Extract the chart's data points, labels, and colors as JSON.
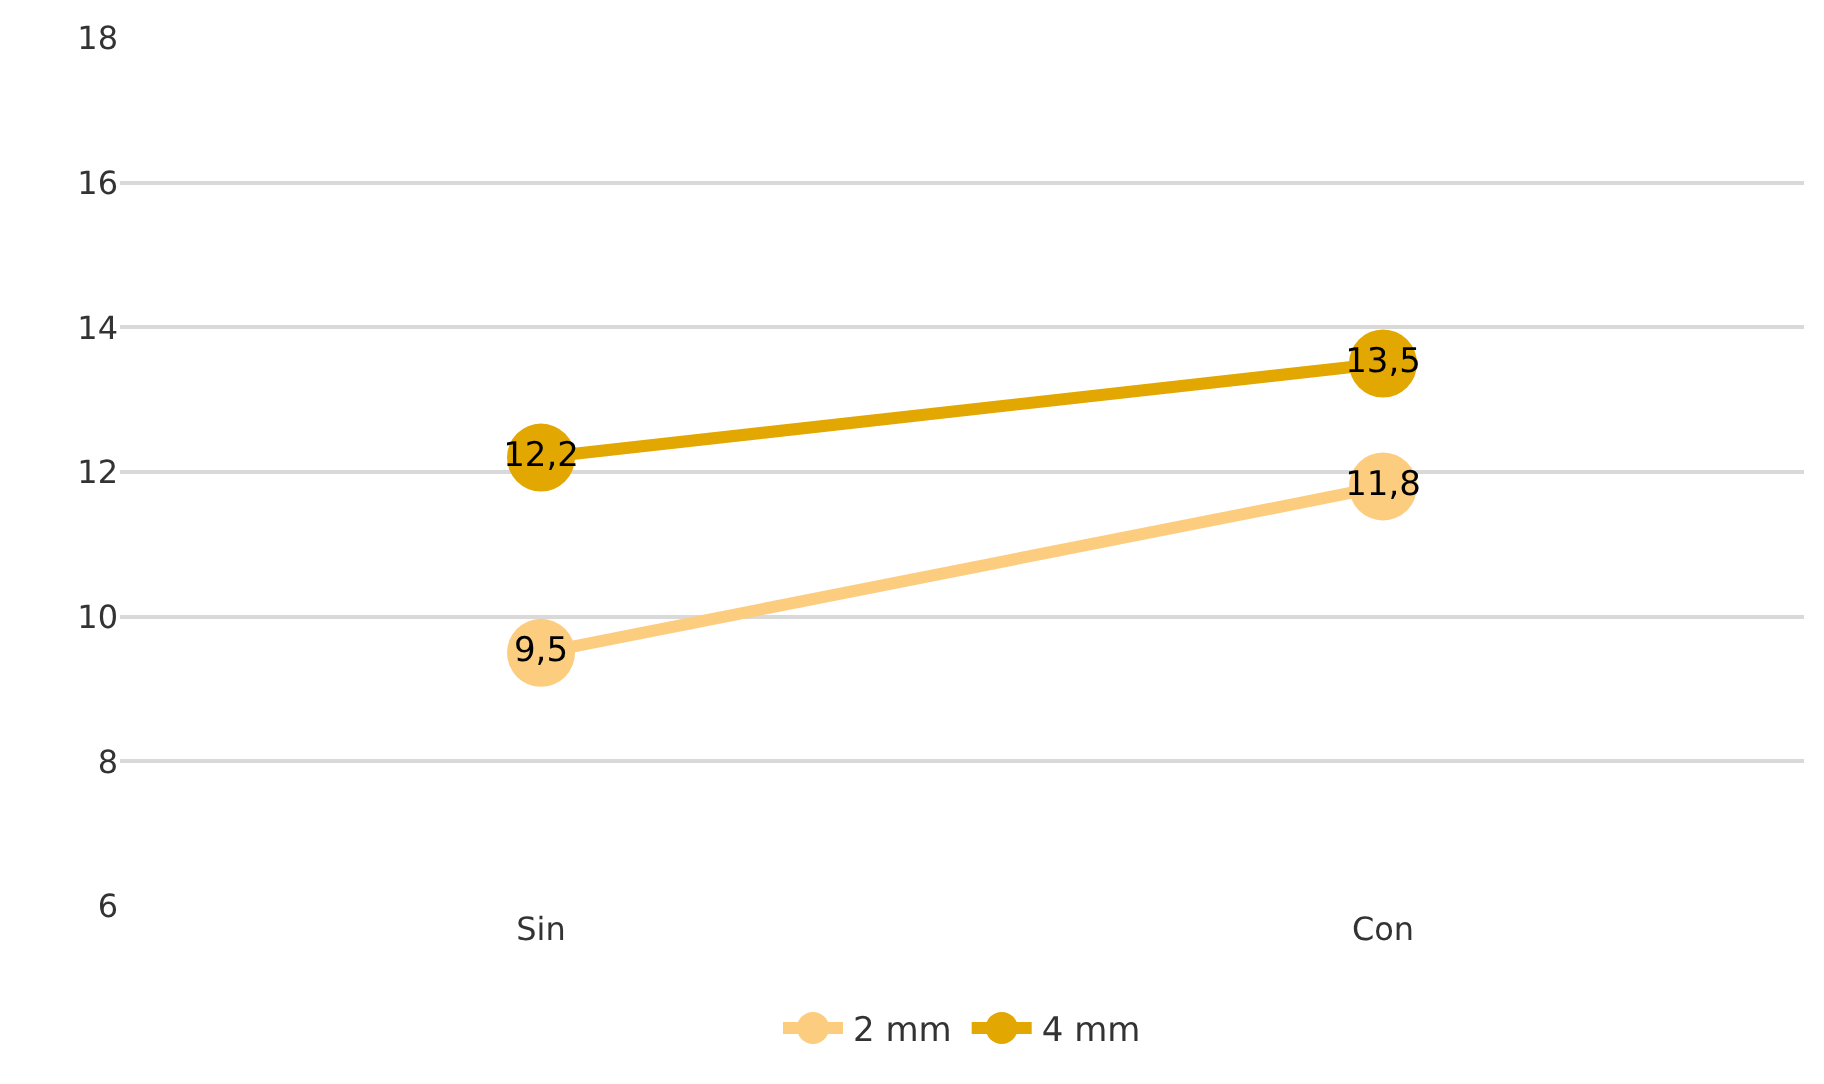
{
  "chart_data": {
    "type": "line",
    "categories": [
      "Sin",
      "Con"
    ],
    "series": [
      {
        "name": "2 mm",
        "color": "#fdcd7f",
        "values": [
          9.5,
          11.8
        ],
        "value_labels": [
          "9,5",
          "11,8"
        ]
      },
      {
        "name": "4 mm",
        "color": "#e2a700",
        "values": [
          12.2,
          13.5
        ],
        "value_labels": [
          "12,2",
          "13,5"
        ]
      }
    ],
    "ylim": [
      6,
      18
    ],
    "yticks": [
      6,
      8,
      10,
      12,
      14,
      16,
      18
    ],
    "grid": "y",
    "legend": "bottom",
    "marker": "circle",
    "line_style": "solid"
  }
}
